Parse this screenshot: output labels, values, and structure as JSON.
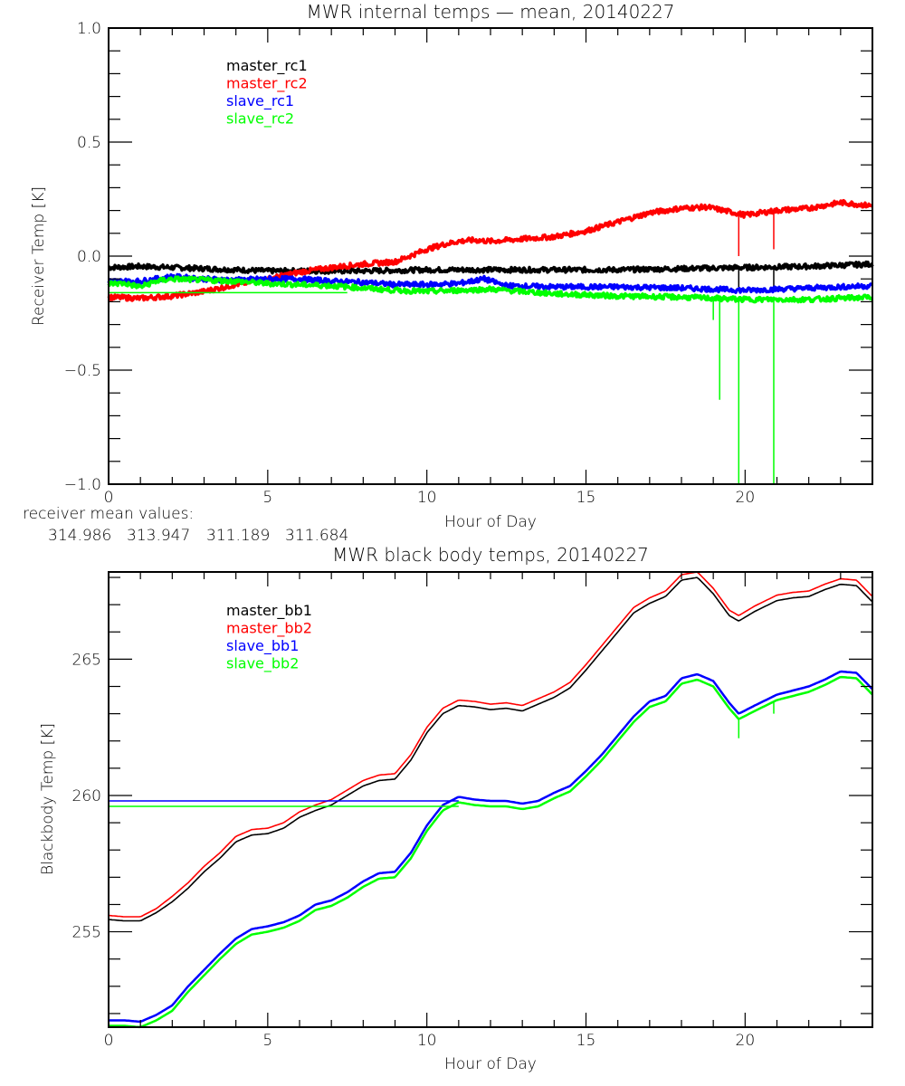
{
  "chart_data": [
    {
      "type": "line",
      "title": "MWR internal temps — mean, 20140227",
      "xlabel": "Hour of Day",
      "ylabel": "Receiver Temp [K]",
      "xlim": [
        0,
        24
      ],
      "ylim": [
        -1.0,
        1.0
      ],
      "xticks": [
        0,
        5,
        10,
        15,
        20
      ],
      "xtick_labels": [
        "0",
        "5",
        "10",
        "15",
        "20"
      ],
      "yticks": [
        -1.0,
        -0.5,
        0.0,
        0.5,
        1.0
      ],
      "ytick_labels": [
        "−1.0",
        "−0.5",
        "0.0",
        "0.5",
        "1.0"
      ],
      "grid": false,
      "legend_position": "top-left",
      "series": [
        {
          "name": "master_rc1",
          "color": "#000000",
          "noisy": true,
          "x": [
            0,
            1,
            2,
            3,
            4,
            5,
            6,
            8,
            10,
            12,
            14,
            16,
            18,
            20,
            22,
            24
          ],
          "y": [
            -0.05,
            -0.045,
            -0.05,
            -0.055,
            -0.06,
            -0.065,
            -0.065,
            -0.065,
            -0.06,
            -0.06,
            -0.06,
            -0.06,
            -0.055,
            -0.05,
            -0.045,
            -0.035
          ],
          "spikes": [
            {
              "x": 19.8,
              "y": -0.15
            },
            {
              "x": 20.9,
              "y": -0.15
            }
          ]
        },
        {
          "name": "master_rc2",
          "color": "#ff0000",
          "noisy": true,
          "x": [
            0,
            1,
            2,
            3,
            4,
            5,
            6,
            7,
            8,
            9,
            10,
            10.5,
            11,
            11.5,
            12,
            13,
            14,
            15,
            16,
            17,
            18,
            18.8,
            19.5,
            20,
            21,
            22,
            23,
            24
          ],
          "y": [
            -0.18,
            -0.185,
            -0.175,
            -0.155,
            -0.125,
            -0.1,
            -0.07,
            -0.05,
            -0.035,
            -0.025,
            0.03,
            0.05,
            0.065,
            0.07,
            0.065,
            0.075,
            0.085,
            0.11,
            0.15,
            0.19,
            0.21,
            0.215,
            0.195,
            0.18,
            0.2,
            0.21,
            0.235,
            0.22
          ],
          "spikes": [
            {
              "x": 19.8,
              "y": 0.0
            },
            {
              "x": 20.9,
              "y": 0.03
            }
          ]
        },
        {
          "name": "slave_rc1",
          "color": "#0000ff",
          "noisy": true,
          "x": [
            0,
            1,
            2,
            3,
            4,
            5,
            6,
            7,
            8,
            9,
            10,
            11,
            11.8,
            12.5,
            14,
            16,
            18,
            20,
            22,
            24
          ],
          "y": [
            -0.11,
            -0.11,
            -0.09,
            -0.1,
            -0.105,
            -0.1,
            -0.1,
            -0.11,
            -0.115,
            -0.125,
            -0.125,
            -0.12,
            -0.1,
            -0.13,
            -0.135,
            -0.135,
            -0.14,
            -0.15,
            -0.14,
            -0.13
          ],
          "spikes": []
        },
        {
          "name": "slave_rc2",
          "color": "#00ff00",
          "noisy": true,
          "x": [
            0,
            0.5,
            1,
            1.5,
            2,
            3,
            4,
            5,
            6,
            7,
            8,
            9,
            10,
            11,
            12,
            13,
            14,
            15,
            16,
            18,
            20,
            22,
            24
          ],
          "y": [
            -0.12,
            -0.12,
            -0.135,
            -0.11,
            -0.1,
            -0.105,
            -0.11,
            -0.12,
            -0.125,
            -0.13,
            -0.14,
            -0.15,
            -0.155,
            -0.15,
            -0.145,
            -0.155,
            -0.165,
            -0.17,
            -0.175,
            -0.18,
            -0.19,
            -0.19,
            -0.18
          ],
          "baseline": {
            "y": -0.16,
            "x_start": 0,
            "x_end": 7.5
          },
          "spikes": [
            {
              "x": 19.0,
              "y": -0.28
            },
            {
              "x": 19.2,
              "y": -0.63
            },
            {
              "x": 19.8,
              "y": -1.0
            },
            {
              "x": 20.9,
              "y": -1.0
            }
          ]
        }
      ],
      "annotation": {
        "label": "receiver mean values:",
        "values": [
          {
            "text": "314.986",
            "color": "#000000"
          },
          {
            "text": "313.947",
            "color": "#ff0000"
          },
          {
            "text": "311.189",
            "color": "#0000ff"
          },
          {
            "text": "311.684",
            "color": "#00ff00"
          }
        ]
      }
    },
    {
      "type": "line",
      "title": "MWR black body temps, 20140227",
      "xlabel": "Hour of Day",
      "ylabel": "Blackbody Temp [K]",
      "xlim": [
        0,
        24
      ],
      "ylim": [
        251.5,
        268.2
      ],
      "xticks": [
        0,
        5,
        10,
        15,
        20
      ],
      "xtick_labels": [
        "0",
        "5",
        "10",
        "15",
        "20"
      ],
      "yticks": [
        255,
        260,
        265
      ],
      "ytick_labels": [
        "255",
        "260",
        "265"
      ],
      "grid": false,
      "legend_position": "top-left",
      "series": [
        {
          "name": "master_bb1",
          "color": "#000000",
          "x": [
            0,
            0.5,
            1,
            1.5,
            2,
            2.5,
            3,
            3.5,
            4,
            4.5,
            5,
            5.5,
            6,
            6.5,
            7,
            7.5,
            8,
            8.5,
            9,
            9.5,
            10,
            10.5,
            11,
            11.5,
            12,
            12.5,
            13,
            13.5,
            14,
            14.5,
            15,
            15.5,
            16,
            16.5,
            17,
            17.5,
            18,
            18.5,
            19,
            19.5,
            19.8,
            20.3,
            21,
            21.5,
            22,
            22.5,
            23,
            23.5,
            24
          ],
          "y": [
            255.45,
            255.4,
            255.4,
            255.7,
            256.1,
            256.6,
            257.2,
            257.7,
            258.3,
            258.55,
            258.6,
            258.8,
            259.2,
            259.45,
            259.65,
            260.0,
            260.35,
            260.55,
            260.6,
            261.3,
            262.3,
            263.0,
            263.3,
            263.25,
            263.15,
            263.2,
            263.1,
            263.35,
            263.6,
            263.95,
            264.6,
            265.3,
            266.0,
            266.7,
            267.05,
            267.3,
            267.9,
            268.0,
            267.4,
            266.6,
            266.4,
            266.75,
            267.15,
            267.25,
            267.3,
            267.55,
            267.75,
            267.7,
            267.1
          ]
        },
        {
          "name": "master_bb2",
          "color": "#ff0000",
          "x": [
            0,
            0.5,
            1,
            1.5,
            2,
            2.5,
            3,
            3.5,
            4,
            4.5,
            5,
            5.5,
            6,
            6.5,
            7,
            7.5,
            8,
            8.5,
            9,
            9.5,
            10,
            10.5,
            11,
            11.5,
            12,
            12.5,
            13,
            13.5,
            14,
            14.5,
            15,
            15.5,
            16,
            16.5,
            17,
            17.5,
            18,
            18.5,
            19,
            19.5,
            19.8,
            20.3,
            21,
            21.5,
            22,
            22.5,
            23,
            23.5,
            24
          ],
          "y": [
            255.6,
            255.55,
            255.55,
            255.85,
            256.3,
            256.8,
            257.4,
            257.9,
            258.5,
            258.75,
            258.8,
            259.0,
            259.4,
            259.65,
            259.85,
            260.2,
            260.55,
            260.75,
            260.8,
            261.5,
            262.5,
            263.2,
            263.5,
            263.45,
            263.35,
            263.4,
            263.3,
            263.55,
            263.8,
            264.15,
            264.8,
            265.5,
            266.2,
            266.9,
            267.25,
            267.5,
            268.1,
            268.2,
            267.6,
            266.8,
            266.6,
            266.95,
            267.35,
            267.45,
            267.5,
            267.75,
            267.95,
            267.9,
            267.3
          ]
        },
        {
          "name": "slave_bb1",
          "color": "#0000ff",
          "x": [
            0,
            0.5,
            1,
            1.5,
            2,
            2.5,
            3,
            3.5,
            4,
            4.5,
            5,
            5.5,
            6,
            6.5,
            7,
            7.5,
            8,
            8.5,
            9,
            9.5,
            10,
            10.5,
            11,
            11.5,
            12,
            12.5,
            13,
            13.5,
            14,
            14.5,
            15,
            15.5,
            16,
            16.5,
            17,
            17.5,
            18,
            18.5,
            19,
            19.5,
            19.8,
            20.3,
            21,
            21.5,
            22,
            22.5,
            23,
            23.5,
            24
          ],
          "y": [
            251.75,
            251.75,
            251.7,
            251.95,
            252.3,
            253.0,
            253.6,
            254.2,
            254.75,
            255.1,
            255.2,
            255.35,
            255.6,
            256.0,
            256.15,
            256.45,
            256.85,
            257.15,
            257.2,
            257.9,
            258.9,
            259.65,
            259.95,
            259.85,
            259.8,
            259.8,
            259.7,
            259.8,
            260.1,
            260.35,
            260.9,
            261.5,
            262.2,
            262.9,
            263.45,
            263.65,
            264.3,
            264.45,
            264.2,
            263.4,
            263.0,
            263.3,
            263.7,
            263.85,
            264.0,
            264.25,
            264.55,
            264.5,
            263.9
          ],
          "baseline": {
            "y": 259.8,
            "x_start": 0,
            "x_end": 11
          }
        },
        {
          "name": "slave_bb2",
          "color": "#00ff00",
          "x": [
            0,
            0.5,
            1,
            1.5,
            2,
            2.5,
            3,
            3.5,
            4,
            4.5,
            5,
            5.5,
            6,
            6.5,
            7,
            7.5,
            8,
            8.5,
            9,
            9.5,
            10,
            10.5,
            11,
            11.5,
            12,
            12.5,
            13,
            13.5,
            14,
            14.5,
            15,
            15.5,
            16,
            16.5,
            17,
            17.5,
            18,
            18.5,
            19,
            19.5,
            19.8,
            20.3,
            21,
            21.5,
            22,
            22.5,
            23,
            23.5,
            24
          ],
          "y": [
            251.55,
            251.55,
            251.5,
            251.75,
            252.1,
            252.8,
            253.4,
            254.0,
            254.55,
            254.9,
            255.0,
            255.15,
            255.4,
            255.8,
            255.95,
            256.25,
            256.65,
            256.95,
            257.0,
            257.7,
            258.7,
            259.45,
            259.75,
            259.65,
            259.6,
            259.6,
            259.5,
            259.6,
            259.9,
            260.15,
            260.7,
            261.3,
            262.0,
            262.7,
            263.25,
            263.45,
            264.1,
            264.25,
            264.0,
            263.2,
            262.8,
            263.1,
            263.5,
            263.65,
            263.8,
            264.05,
            264.35,
            264.3,
            263.7
          ],
          "baseline": {
            "y": 259.6,
            "x_start": 0,
            "x_end": 11
          },
          "spikes": [
            {
              "x": 19.8,
              "y": 262.1
            },
            {
              "x": 20.9,
              "y": 263.0
            }
          ]
        }
      ]
    }
  ]
}
